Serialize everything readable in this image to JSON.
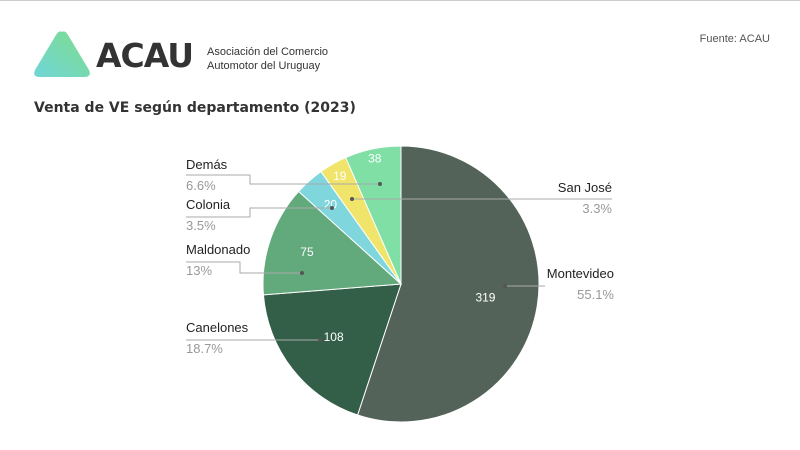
{
  "header": {
    "brand": "ACAU",
    "org_line1": "Asociación del Comercio",
    "org_line2": "Automotor del Uruguay",
    "source": "Fuente: ACAU"
  },
  "chart_data": {
    "type": "pie",
    "title": "Venta de VE según departamento (2023)",
    "slices": [
      {
        "label": "Montevideo",
        "value": 319,
        "percent": "55.1%",
        "color": "#536359"
      },
      {
        "label": "Canelones",
        "value": 108,
        "percent": "18.7%",
        "color": "#335f48"
      },
      {
        "label": "Maldonado",
        "value": 75,
        "percent": "13%",
        "color": "#62a97c"
      },
      {
        "label": "Colonia",
        "value": 20,
        "percent": "3.5%",
        "color": "#7fd6dd"
      },
      {
        "label": "San José",
        "value": 19,
        "percent": "3.3%",
        "color": "#f0e56a"
      },
      {
        "label": "Demás",
        "value": 38,
        "percent": "6.6%",
        "color": "#7fdfa5"
      }
    ],
    "start_angle_deg": 0,
    "direction": "clockwise"
  }
}
